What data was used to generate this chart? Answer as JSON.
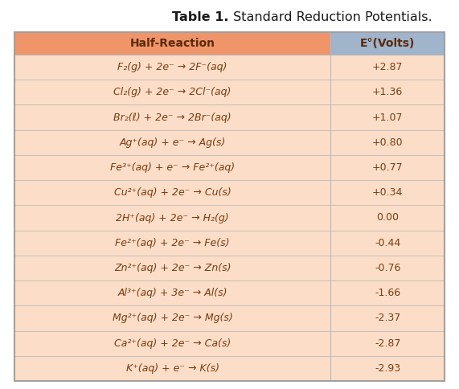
{
  "title_bold": "Table 1.",
  "title_normal": " Standard Reduction Potentials.",
  "header": [
    "Half-Reaction",
    "E°(Volts)"
  ],
  "rows": [
    [
      "F₂(g) + 2e⁻ → 2F⁻(aq)",
      "+2.87"
    ],
    [
      "Cl₂(g) + 2e⁻ → 2Cl⁻(aq)",
      "+1.36"
    ],
    [
      "Br₂(ℓ) + 2e⁻ → 2Br⁻(aq)",
      "+1.07"
    ],
    [
      "Ag⁺(aq) + e⁻ → Ag(s)",
      "+0.80"
    ],
    [
      "Fe³⁺(aq) + e⁻ → Fe²⁺(aq)",
      "+0.77"
    ],
    [
      "Cu²⁺(aq) + 2e⁻ → Cu(s)",
      "+0.34"
    ],
    [
      "2H⁺(aq) + 2e⁻ → H₂(g)",
      "0.00"
    ],
    [
      "Fe²⁺(aq) + 2e⁻ → Fe(s)",
      "-0.44"
    ],
    [
      "Zn²⁺(aq) + 2e⁻ → Zn(s)",
      "-0.76"
    ],
    [
      "Al³⁺(aq) + 3e⁻ → Al(s)",
      "-1.66"
    ],
    [
      "Mg²⁺(aq) + 2e⁻ → Mg(s)",
      "-2.37"
    ],
    [
      "Ca²⁺(aq) + 2e⁻ → Ca(s)",
      "-2.87"
    ],
    [
      "K⁺(aq) + e⁻ → K(s)",
      "-2.93"
    ]
  ],
  "header_color_left": "#F0956A",
  "header_color_right": "#A0B4CC",
  "row_color": "#FCDEC8",
  "border_color": "#B8B8B8",
  "text_color": "#7B3A10",
  "header_text_color": "#5A2A08",
  "title_color": "#1A1A1A",
  "outer_border_color": "#A0A0A0",
  "fig_bg": "#FFFFFF"
}
